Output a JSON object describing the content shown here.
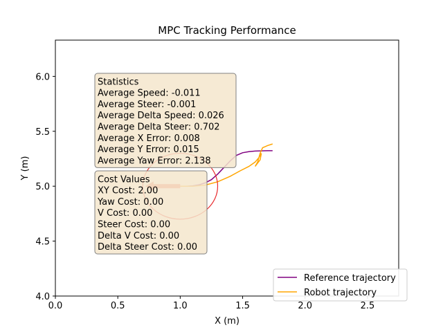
{
  "chart_data": {
    "type": "line",
    "title": "MPC Tracking Performance",
    "xlabel": "X (m)",
    "ylabel": "Y (m)",
    "xlim": [
      0.0,
      2.75
    ],
    "ylim": [
      4.0,
      6.33
    ],
    "xticks": [
      0.0,
      0.5,
      1.0,
      1.5,
      2.0,
      2.5
    ],
    "xtick_labels": [
      "0.0",
      "0.5",
      "1.0",
      "1.5",
      "2.0",
      "2.5"
    ],
    "yticks": [
      4.0,
      4.5,
      5.0,
      5.5,
      6.0
    ],
    "ytick_labels": [
      "4.0",
      "4.5",
      "5.0",
      "5.5",
      "6.0"
    ],
    "grid": false,
    "legend_position": "lower-right",
    "series": [
      {
        "name": "Reference trajectory",
        "color": "#800080",
        "x": [
          1.0,
          1.05,
          1.1,
          1.15,
          1.2,
          1.25,
          1.3,
          1.35,
          1.4,
          1.45,
          1.5,
          1.55,
          1.6,
          1.65,
          1.7,
          1.74
        ],
        "y": [
          5.0,
          5.0,
          5.003,
          5.012,
          5.03,
          5.06,
          5.11,
          5.17,
          5.23,
          5.28,
          5.305,
          5.315,
          5.32,
          5.322,
          5.323,
          5.323
        ]
      },
      {
        "name": "Robot trajectory",
        "color": "#ffa500",
        "x": [
          1.0,
          1.1,
          1.2,
          1.3,
          1.4,
          1.48,
          1.55,
          1.6,
          1.63,
          1.65,
          1.64,
          1.6,
          1.62,
          1.64,
          1.66,
          1.7,
          1.74
        ],
        "y": [
          5.0,
          5.0,
          5.01,
          5.04,
          5.09,
          5.14,
          5.18,
          5.22,
          5.26,
          5.3,
          5.24,
          5.18,
          5.22,
          5.3,
          5.35,
          5.37,
          5.385
        ]
      }
    ],
    "robot_circle": {
      "center": [
        1.0,
        5.0
      ],
      "radius": 0.3,
      "color": "#e8292c"
    },
    "heading_arrow": {
      "from": [
        1.0,
        5.0
      ],
      "to": [
        0.72,
        5.0
      ],
      "color": "#f07060"
    },
    "stats_box": {
      "title": "Statistics",
      "lines": [
        "Average Speed: -0.011",
        "Average Steer: -0.001",
        "Average Delta Speed: 0.026",
        "Average Delta Steer: 0.702",
        "Average X Error: 0.008",
        "Average Y Error: 0.015",
        "Average Yaw Error: 2.138"
      ]
    },
    "cost_box": {
      "title": "Cost Values",
      "lines": [
        "XY Cost: 2.00",
        "Yaw Cost: 0.00",
        "V Cost: 0.00",
        "Steer Cost: 0.00",
        "Delta V Cost: 0.00",
        "Delta Steer Cost: 0.00"
      ]
    }
  }
}
